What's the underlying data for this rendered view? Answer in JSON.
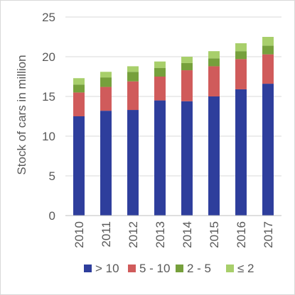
{
  "chart_data": {
    "type": "bar",
    "stacked": true,
    "title": "",
    "xlabel": "",
    "ylabel": "Stock of cars in million",
    "ylim": [
      0,
      25
    ],
    "yticks": [
      0,
      5,
      10,
      15,
      20,
      25
    ],
    "grid": true,
    "legend_position": "bottom",
    "categories": [
      "2010",
      "2011",
      "2012",
      "2013",
      "2014",
      "2015",
      "2016",
      "2017"
    ],
    "series": [
      {
        "name": "> 10",
        "color": "#2E3E9C",
        "values": [
          12.5,
          13.2,
          13.3,
          14.5,
          14.4,
          15.0,
          15.9,
          16.6
        ]
      },
      {
        "name": "5 - 10",
        "color": "#D05B5B",
        "values": [
          3.0,
          3.0,
          3.6,
          3.0,
          3.9,
          3.8,
          3.8,
          3.7
        ]
      },
      {
        "name": "2 - 5",
        "color": "#76A03C",
        "values": [
          1.0,
          1.2,
          1.2,
          1.1,
          0.9,
          1.0,
          1.0,
          1.1
        ]
      },
      {
        "name": "≤ 2",
        "color": "#A8CF6B",
        "values": [
          0.8,
          0.7,
          0.7,
          0.8,
          0.8,
          0.9,
          1.0,
          1.1
        ]
      }
    ]
  }
}
